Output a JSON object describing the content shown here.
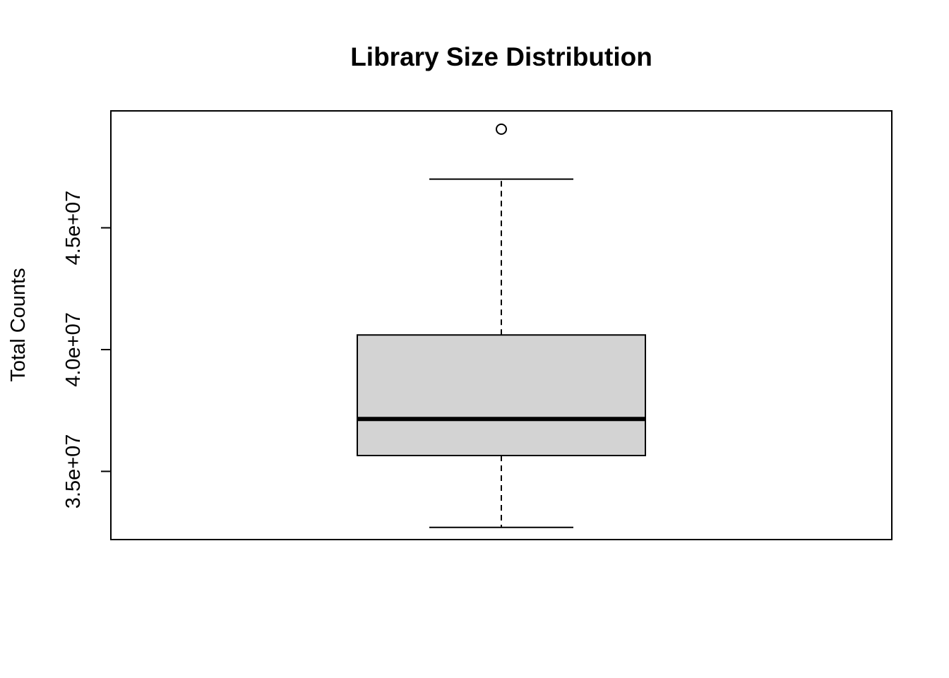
{
  "chart_data": {
    "type": "box",
    "title": "Library Size Distribution",
    "xlabel": "",
    "ylabel": "Total Counts",
    "ylim": [
      32200000,
      49800000
    ],
    "yticks": [
      35000000,
      40000000,
      45000000
    ],
    "ytick_labels": [
      "3.5e+07",
      "4.0e+07",
      "4.5e+07"
    ],
    "box": {
      "whisker_low": 32700000,
      "q1": 35650000,
      "median": 37150000,
      "q3": 40600000,
      "whisker_high": 47000000,
      "outliers": [
        49050000
      ]
    },
    "colors": {
      "box_fill": "#d3d3d3",
      "stroke": "#000000"
    },
    "grid": false,
    "legend": "none"
  }
}
